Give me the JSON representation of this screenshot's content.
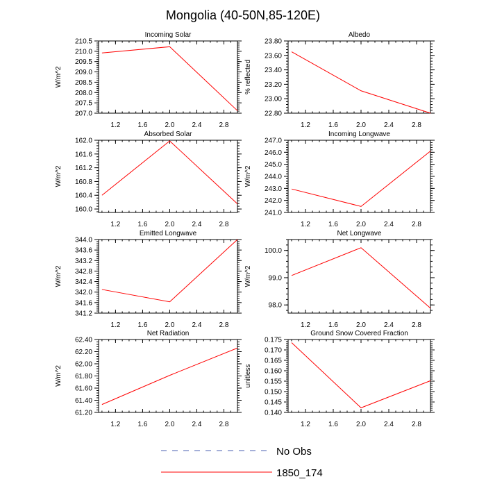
{
  "figure": {
    "title": "Mongolia (40-50N,85-120E)"
  },
  "legend": {
    "entries": [
      {
        "label": "No Obs",
        "color": "#4a5fb0",
        "style": "dashed"
      },
      {
        "label": "1850_174",
        "color": "#ff0000",
        "style": "solid"
      }
    ]
  },
  "chart_data": [
    {
      "type": "line",
      "title": "Incoming Solar",
      "ylabel": "W/m^2",
      "xlabel": "",
      "xlim": [
        0.95,
        3.0
      ],
      "ylim": [
        207.0,
        210.5
      ],
      "xticks": [
        1.2,
        1.6,
        2.0,
        2.4,
        2.8
      ],
      "xtick_labels": [
        "1.2",
        "1.6",
        "2.0",
        "2.4",
        "2.8"
      ],
      "yticks": [
        207.0,
        207.5,
        208.0,
        208.5,
        209.0,
        209.5,
        210.0,
        210.5
      ],
      "ytick_labels": [
        "207.0",
        "207.5",
        "208.0",
        "208.5",
        "209.0",
        "209.5",
        "210.0",
        "210.5"
      ],
      "series": [
        {
          "name": "1850_174",
          "color": "#ff0000",
          "x": [
            1,
            2,
            3
          ],
          "y": [
            209.92,
            210.22,
            207.12
          ]
        }
      ]
    },
    {
      "type": "line",
      "title": "Albedo",
      "ylabel": "% reflected",
      "xlabel": "",
      "xlim": [
        0.95,
        3.0
      ],
      "ylim": [
        22.8,
        23.8
      ],
      "xticks": [
        1.2,
        1.6,
        2.0,
        2.4,
        2.8
      ],
      "xtick_labels": [
        "1.2",
        "1.6",
        "2.0",
        "2.4",
        "2.8"
      ],
      "yticks": [
        22.8,
        23.0,
        23.2,
        23.4,
        23.6,
        23.8
      ],
      "ytick_labels": [
        "22.80",
        "23.00",
        "23.20",
        "23.40",
        "23.60",
        "23.80"
      ],
      "series": [
        {
          "name": "1850_174",
          "color": "#ff0000",
          "x": [
            1,
            2,
            3
          ],
          "y": [
            23.65,
            23.11,
            22.8
          ]
        }
      ]
    },
    {
      "type": "line",
      "title": "Absorbed Solar",
      "ylabel": "W/m^2",
      "xlabel": "",
      "xlim": [
        0.95,
        3.0
      ],
      "ylim": [
        159.9,
        162.0
      ],
      "xticks": [
        1.2,
        1.6,
        2.0,
        2.4,
        2.8
      ],
      "xtick_labels": [
        "1.2",
        "1.6",
        "2.0",
        "2.4",
        "2.8"
      ],
      "yticks": [
        160.0,
        160.4,
        160.8,
        161.2,
        161.6,
        162.0
      ],
      "ytick_labels": [
        "160.0",
        "160.4",
        "160.8",
        "161.2",
        "161.6",
        "162.0"
      ],
      "series": [
        {
          "name": "1850_174",
          "color": "#ff0000",
          "x": [
            1,
            2,
            3
          ],
          "y": [
            160.4,
            161.98,
            160.15
          ]
        }
      ]
    },
    {
      "type": "line",
      "title": "Incoming Longwave",
      "ylabel": "W/m^2",
      "xlabel": "",
      "xlim": [
        0.95,
        3.0
      ],
      "ylim": [
        241.0,
        247.0
      ],
      "xticks": [
        1.2,
        1.6,
        2.0,
        2.4,
        2.8
      ],
      "xtick_labels": [
        "1.2",
        "1.6",
        "2.0",
        "2.4",
        "2.8"
      ],
      "yticks": [
        241.0,
        242.0,
        243.0,
        244.0,
        245.0,
        246.0,
        247.0
      ],
      "ytick_labels": [
        "241.0",
        "242.0",
        "243.0",
        "244.0",
        "245.0",
        "246.0",
        "247.0"
      ],
      "series": [
        {
          "name": "1850_174",
          "color": "#ff0000",
          "x": [
            1,
            2,
            3
          ],
          "y": [
            242.95,
            241.5,
            246.1
          ]
        }
      ]
    },
    {
      "type": "line",
      "title": "Emitted Longwave",
      "ylabel": "W/m^2",
      "xlabel": "",
      "xlim": [
        0.95,
        3.0
      ],
      "ylim": [
        341.2,
        344.0
      ],
      "xticks": [
        1.2,
        1.6,
        2.0,
        2.4,
        2.8
      ],
      "xtick_labels": [
        "1.2",
        "1.6",
        "2.0",
        "2.4",
        "2.8"
      ],
      "yticks": [
        341.2,
        341.6,
        342.0,
        342.4,
        342.8,
        343.2,
        343.6,
        344.0
      ],
      "ytick_labels": [
        "341.2",
        "341.6",
        "342.0",
        "342.4",
        "342.8",
        "343.2",
        "343.6",
        "344.0"
      ],
      "series": [
        {
          "name": "1850_174",
          "color": "#ff0000",
          "x": [
            1,
            2,
            3
          ],
          "y": [
            342.1,
            341.63,
            344.0
          ]
        }
      ]
    },
    {
      "type": "line",
      "title": "Net Longwave",
      "ylabel": "W/m^2",
      "xlabel": "",
      "xlim": [
        0.95,
        3.0
      ],
      "ylim": [
        97.7,
        100.4
      ],
      "xticks": [
        1.2,
        1.6,
        2.0,
        2.4,
        2.8
      ],
      "xtick_labels": [
        "1.2",
        "1.6",
        "2.0",
        "2.4",
        "2.8"
      ],
      "yticks": [
        98.0,
        99.0,
        100.0
      ],
      "ytick_labels": [
        "98.0",
        "99.0",
        "100.0"
      ],
      "series": [
        {
          "name": "1850_174",
          "color": "#ff0000",
          "x": [
            1,
            2,
            3
          ],
          "y": [
            99.08,
            100.1,
            97.88
          ]
        }
      ]
    },
    {
      "type": "line",
      "title": "Net Radiation",
      "ylabel": "W/m^2",
      "xlabel": "",
      "xlim": [
        0.95,
        3.0
      ],
      "ylim": [
        61.2,
        62.4
      ],
      "xticks": [
        1.2,
        1.6,
        2.0,
        2.4,
        2.8
      ],
      "xtick_labels": [
        "1.2",
        "1.6",
        "2.0",
        "2.4",
        "2.8"
      ],
      "yticks": [
        61.2,
        61.4,
        61.6,
        61.8,
        62.0,
        62.2,
        62.4
      ],
      "ytick_labels": [
        "61.20",
        "61.40",
        "61.60",
        "61.80",
        "62.00",
        "62.20",
        "62.40"
      ],
      "series": [
        {
          "name": "1850_174",
          "color": "#ff0000",
          "x": [
            1,
            2,
            3
          ],
          "y": [
            61.33,
            61.81,
            62.26
          ]
        }
      ]
    },
    {
      "type": "line",
      "title": "Ground Snow Covered Fraction",
      "ylabel": "unitless",
      "xlabel": "",
      "xlim": [
        0.95,
        3.0
      ],
      "ylim": [
        0.14,
        0.175
      ],
      "xticks": [
        1.2,
        1.6,
        2.0,
        2.4,
        2.8
      ],
      "xtick_labels": [
        "1.2",
        "1.6",
        "2.0",
        "2.4",
        "2.8"
      ],
      "yticks": [
        0.14,
        0.145,
        0.15,
        0.155,
        0.16,
        0.165,
        0.17,
        0.175
      ],
      "ytick_labels": [
        "0.140",
        "0.145",
        "0.150",
        "0.155",
        "0.160",
        "0.165",
        "0.170",
        "0.175"
      ],
      "series": [
        {
          "name": "1850_174",
          "color": "#ff0000",
          "x": [
            1,
            2,
            3
          ],
          "y": [
            0.1735,
            0.1422,
            0.1552
          ]
        }
      ]
    }
  ]
}
